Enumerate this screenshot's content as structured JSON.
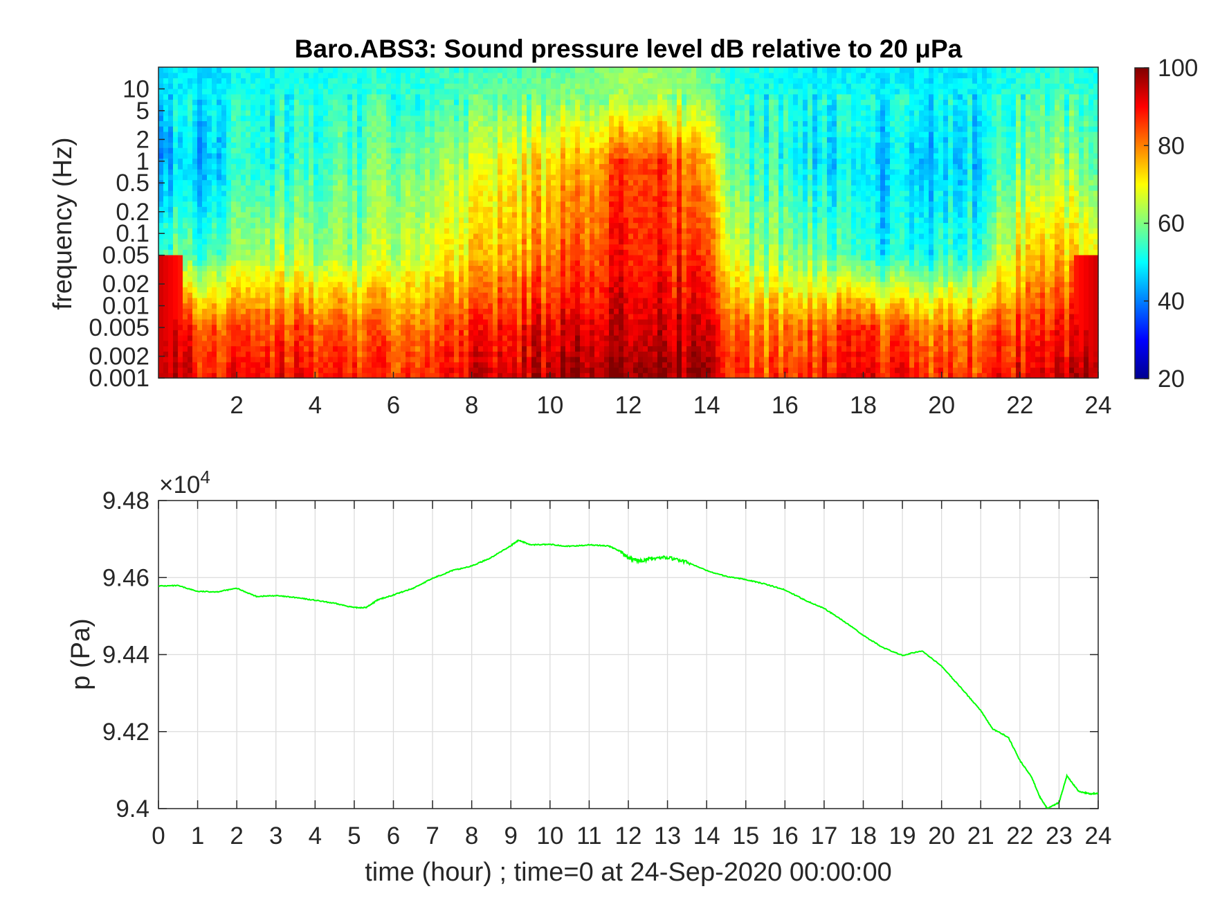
{
  "chart_data": [
    {
      "type": "heatmap",
      "title": "Baro.ABS3: Sound pressure level dB relative to 20 μPa",
      "ylabel": "frequency (Hz)",
      "xlabel": "",
      "yscale": "log",
      "xlim": [
        0,
        24
      ],
      "ylim": [
        0.001,
        20
      ],
      "x_ticks": [
        "2",
        "4",
        "6",
        "8",
        "10",
        "12",
        "14",
        "16",
        "18",
        "20",
        "22",
        "24"
      ],
      "y_ticks": [
        "10",
        "5",
        "2",
        "1",
        "0.5",
        "0.2",
        "0.1",
        "0.05",
        "0.02",
        "0.01",
        "0.005",
        "0.002",
        "0.001"
      ],
      "colormap": "jet",
      "colorbar": {
        "ticks": [
          "100",
          "80",
          "60",
          "40",
          "20"
        ],
        "range": [
          20,
          100
        ]
      },
      "hourly_mean_level_db": {
        "time_hour": [
          0,
          1,
          2,
          3,
          4,
          5,
          6,
          7,
          8,
          9,
          10,
          11,
          12,
          13,
          14,
          15,
          16,
          17,
          18,
          19,
          20,
          21,
          22,
          23,
          24
        ],
        "low_freq_0_005Hz": [
          92,
          85,
          82,
          84,
          83,
          82,
          82,
          84,
          86,
          88,
          90,
          92,
          94,
          94,
          92,
          80,
          79,
          83,
          84,
          82,
          80,
          81,
          85,
          88,
          90
        ],
        "mid_freq_0_05Hz": [
          58,
          55,
          60,
          64,
          62,
          62,
          66,
          70,
          72,
          76,
          80,
          84,
          90,
          88,
          84,
          62,
          60,
          58,
          50,
          50,
          52,
          54,
          72,
          76,
          70
        ],
        "high_freq_1Hz": [
          45,
          45,
          50,
          52,
          54,
          56,
          60,
          62,
          64,
          70,
          72,
          76,
          86,
          86,
          74,
          54,
          52,
          48,
          46,
          46,
          46,
          48,
          58,
          62,
          55
        ]
      }
    },
    {
      "type": "line",
      "xlabel": "time (hour) ; time=0 at 24-Sep-2020 00:00:00",
      "ylabel": "p (Pa)",
      "y_exponent_label": "×10",
      "y_exponent_power": "4",
      "xlim": [
        0,
        24
      ],
      "ylim": [
        9.4,
        9.48
      ],
      "x_ticks": [
        "0",
        "1",
        "2",
        "3",
        "4",
        "5",
        "6",
        "7",
        "8",
        "9",
        "10",
        "11",
        "12",
        "13",
        "14",
        "15",
        "16",
        "17",
        "18",
        "19",
        "20",
        "21",
        "22",
        "23",
        "24"
      ],
      "y_ticks": [
        "9.48",
        "9.46",
        "9.44",
        "9.42",
        "9.4"
      ],
      "grid": true,
      "line_color": "#00ff00",
      "series": [
        {
          "x": [
            0,
            0.5,
            1,
            1.5,
            2,
            2.5,
            3,
            3.5,
            4,
            4.5,
            5,
            5.3,
            5.6,
            6,
            6.5,
            7,
            7.5,
            8,
            8.5,
            9,
            9.2,
            9.5,
            10,
            10.5,
            11,
            11.5,
            11.8,
            12,
            12.3,
            12.6,
            13,
            13.5,
            14,
            14.5,
            15,
            15.5,
            16,
            16.5,
            17,
            17.5,
            18,
            18.5,
            19,
            19.5,
            20,
            20.5,
            21,
            21.3,
            21.7,
            22,
            22.3,
            22.5,
            22.7,
            23,
            23.2,
            23.5,
            23.8,
            24
          ],
          "y": [
            9.4578,
            9.4579,
            9.4564,
            9.4563,
            9.4572,
            9.4551,
            9.4553,
            9.4548,
            9.4541,
            9.4533,
            9.4522,
            9.4522,
            9.4542,
            9.4555,
            9.4572,
            9.4598,
            9.4618,
            9.463,
            9.4652,
            9.4683,
            9.4697,
            9.4685,
            9.4686,
            9.4681,
            9.4685,
            9.4682,
            9.4668,
            9.465,
            9.4643,
            9.465,
            9.4652,
            9.464,
            9.4618,
            9.4603,
            9.4595,
            9.4583,
            9.4568,
            9.4542,
            9.452,
            9.4487,
            9.445,
            9.4418,
            9.4398,
            9.441,
            9.437,
            9.4313,
            9.4255,
            9.4207,
            9.4186,
            9.4125,
            9.4082,
            9.4032,
            9.4,
            9.4016,
            9.4085,
            9.4045,
            9.4038,
            9.404
          ]
        }
      ]
    }
  ]
}
